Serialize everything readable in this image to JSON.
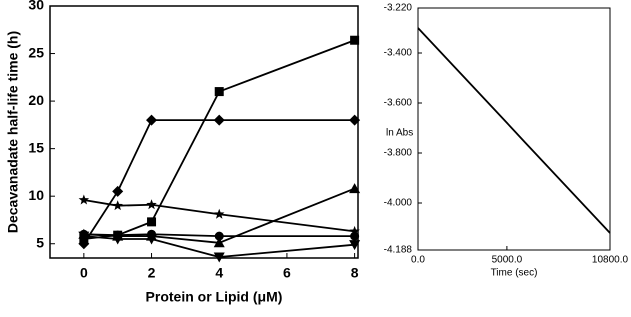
{
  "chart_data": [
    {
      "type": "line",
      "y_label": "Decavanadate half-life time (h)",
      "x_label": "Protein or Lipid (μM)",
      "xlim": [
        -1,
        8.1
      ],
      "xticks": [
        0,
        2,
        4,
        6,
        8
      ],
      "ylim": [
        3.5,
        30
      ],
      "yticks": [
        5,
        10,
        15,
        20,
        25,
        30
      ],
      "series": [
        {
          "marker": "square",
          "color": "#000000",
          "x": [
            0,
            1,
            2,
            4,
            8
          ],
          "values": [
            5.5,
            5.9,
            7.3,
            21,
            26.4
          ]
        },
        {
          "marker": "diamond",
          "color": "#000000",
          "x": [
            0,
            1,
            2,
            4,
            8
          ],
          "values": [
            5,
            10.5,
            18,
            18,
            18
          ]
        },
        {
          "marker": "star",
          "color": "#000000",
          "x": [
            0,
            1,
            2,
            4,
            8
          ],
          "values": [
            9.6,
            9,
            9.1,
            8.1,
            6.3
          ]
        },
        {
          "marker": "triangle-up",
          "color": "#000000",
          "x": [
            0,
            1,
            2,
            4,
            8
          ],
          "values": [
            6,
            5.8,
            5.8,
            5.1,
            10.8
          ]
        },
        {
          "marker": "circle",
          "color": "#000000",
          "x": [
            0,
            1,
            2,
            4,
            8
          ],
          "values": [
            6,
            5.9,
            6,
            5.8,
            5.8
          ]
        },
        {
          "marker": "triangle-down",
          "color": "#000000",
          "x": [
            0,
            1,
            2,
            4,
            8
          ],
          "values": [
            5.8,
            5.5,
            5.5,
            3.6,
            4.9
          ]
        }
      ]
    },
    {
      "type": "line",
      "y_label": "ln Abs",
      "x_label": "Time (sec)",
      "xlim": [
        0,
        10800
      ],
      "xticks": [
        {
          "value": 0,
          "label": "0.0"
        },
        {
          "value": 5000,
          "label": "5000.0"
        },
        {
          "value": 10800,
          "label": "10800.0"
        }
      ],
      "ylim": [
        -4.188,
        -3.22
      ],
      "yticks": [
        {
          "value": -3.22,
          "label": "-3.220"
        },
        {
          "value": -3.4,
          "label": "-3.400"
        },
        {
          "value": -3.6,
          "label": "-3.600"
        },
        {
          "value": -3.8,
          "label": "-3.800"
        },
        {
          "value": -4.0,
          "label": "-4.000"
        },
        {
          "value": -4.188,
          "label": "-4.188"
        }
      ],
      "series": [
        {
          "marker": "none",
          "color": "#000000",
          "x": [
            0,
            1200,
            2400,
            3600,
            4800,
            6000,
            7200,
            8400,
            9600,
            10800
          ],
          "values": [
            -3.3,
            -3.391,
            -3.482,
            -3.573,
            -3.664,
            -3.756,
            -3.847,
            -3.938,
            -4.029,
            -4.12
          ]
        }
      ]
    }
  ]
}
